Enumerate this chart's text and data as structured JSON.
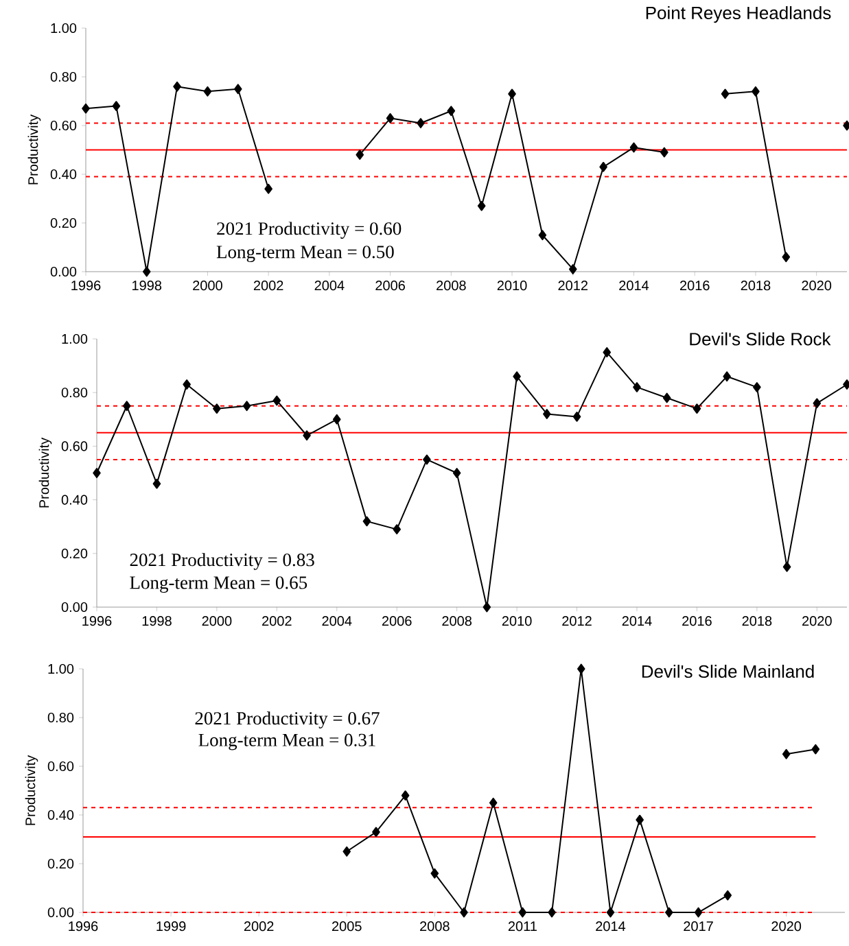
{
  "chart_data": [
    {
      "type": "line",
      "title": "Point Reyes Headlands",
      "ylabel": "Productivity",
      "color": "#000000",
      "marker": "diamond",
      "line_style": "solid",
      "x": [
        1996,
        1997,
        1998,
        1999,
        2000,
        2001,
        2002,
        2003,
        2004,
        2005,
        2006,
        2007,
        2008,
        2009,
        2010,
        2011,
        2012,
        2013,
        2014,
        2015,
        2016,
        2017,
        2018,
        2019,
        2020,
        2021
      ],
      "values": [
        0.67,
        0.68,
        0.0,
        0.76,
        0.74,
        0.75,
        0.34,
        null,
        null,
        0.48,
        0.63,
        0.61,
        0.66,
        0.27,
        0.73,
        0.15,
        0.01,
        0.43,
        0.51,
        0.49,
        null,
        0.73,
        0.74,
        0.06,
        null,
        0.6
      ],
      "xlim": [
        1996,
        2021
      ],
      "ylim": [
        0,
        1
      ],
      "xticks": [
        1996,
        1998,
        2000,
        2002,
        2004,
        2006,
        2008,
        2010,
        2012,
        2014,
        2016,
        2018,
        2020
      ],
      "yticks": [
        {
          "value": 0,
          "label": "0.00"
        },
        {
          "value": 0.2,
          "label": "0.20"
        },
        {
          "value": 0.4,
          "label": "0.40"
        },
        {
          "value": 0.6,
          "label": "0.60"
        },
        {
          "value": 0.8,
          "label": "0.80"
        },
        {
          "value": 1,
          "label": "1.00"
        }
      ],
      "ref_lines": [
        {
          "axis": "y",
          "value": 0.5,
          "color": "#ff0000",
          "line_style": "solid"
        },
        {
          "axis": "y",
          "value": 0.61,
          "color": "#ff0000",
          "line_style": "dashed"
        },
        {
          "axis": "y",
          "value": 0.39,
          "color": "#ff0000",
          "line_style": "dashed"
        }
      ],
      "annotations": [
        "2021 Productivity = 0.60",
        "Long-term Mean = 0.50"
      ]
    },
    {
      "type": "line",
      "title": "Devil's Slide Rock",
      "ylabel": "Productivity",
      "color": "#000000",
      "marker": "diamond",
      "line_style": "solid",
      "x": [
        1996,
        1997,
        1998,
        1999,
        2000,
        2001,
        2002,
        2003,
        2004,
        2005,
        2006,
        2007,
        2008,
        2009,
        2010,
        2011,
        2012,
        2013,
        2014,
        2015,
        2016,
        2017,
        2018,
        2019,
        2020,
        2021
      ],
      "values": [
        0.5,
        0.75,
        0.46,
        0.83,
        0.74,
        0.75,
        0.77,
        0.64,
        0.7,
        0.32,
        0.29,
        0.55,
        0.5,
        0.0,
        0.86,
        0.72,
        0.71,
        0.95,
        0.82,
        0.78,
        0.74,
        0.86,
        0.82,
        0.15,
        0.76,
        0.83
      ],
      "xlim": [
        1996,
        2021
      ],
      "ylim": [
        0,
        1
      ],
      "xticks": [
        1996,
        1998,
        2000,
        2002,
        2004,
        2006,
        2008,
        2010,
        2012,
        2014,
        2016,
        2018,
        2020
      ],
      "yticks": [
        {
          "value": 0,
          "label": "0.00"
        },
        {
          "value": 0.2,
          "label": "0.20"
        },
        {
          "value": 0.4,
          "label": "0.40"
        },
        {
          "value": 0.6,
          "label": "0.60"
        },
        {
          "value": 0.8,
          "label": "0.80"
        },
        {
          "value": 1,
          "label": "1.00"
        }
      ],
      "ref_lines": [
        {
          "axis": "y",
          "value": 0.65,
          "color": "#ff0000",
          "line_style": "solid"
        },
        {
          "axis": "y",
          "value": 0.75,
          "color": "#ff0000",
          "line_style": "dashed"
        },
        {
          "axis": "y",
          "value": 0.55,
          "color": "#ff0000",
          "line_style": "dashed"
        }
      ],
      "annotations": [
        "2021 Productivity = 0.83",
        "Long-term Mean = 0.65"
      ]
    },
    {
      "type": "line",
      "title": "Devil's Slide Mainland",
      "ylabel": "Productivity",
      "color": "#000000",
      "marker": "diamond",
      "line_style": "solid",
      "x": [
        2005,
        2006,
        2007,
        2008,
        2009,
        2010,
        2011,
        2012,
        2013,
        2014,
        2015,
        2016,
        2017,
        2018,
        2019,
        2020,
        2021
      ],
      "values": [
        0.25,
        0.33,
        0.48,
        0.16,
        0.0,
        0.45,
        0.0,
        0.0,
        1.0,
        0.0,
        0.38,
        0.0,
        0.0,
        0.07,
        null,
        0.65,
        0.67
      ],
      "xlim": [
        1996,
        2022
      ],
      "ylim": [
        0,
        1
      ],
      "xticks": [
        1996,
        1999,
        2002,
        2005,
        2008,
        2011,
        2014,
        2017,
        2020
      ],
      "yticks": [
        {
          "value": 0,
          "label": "0.00"
        },
        {
          "value": 0.2,
          "label": "0.20"
        },
        {
          "value": 0.4,
          "label": "0.40"
        },
        {
          "value": 0.6,
          "label": "0.60"
        },
        {
          "value": 0.8,
          "label": "0.80"
        },
        {
          "value": 1,
          "label": "1.00"
        }
      ],
      "ref_lines": [
        {
          "axis": "y",
          "value": 0.31,
          "color": "#ff0000",
          "line_style": "solid"
        },
        {
          "axis": "y",
          "value": 0.43,
          "color": "#ff0000",
          "line_style": "dashed"
        },
        {
          "axis": "y",
          "value": 0.0,
          "color": "#ff0000",
          "line_style": "dashed"
        }
      ],
      "annotations": [
        "2021 Productivity = 0.67",
        "Long-term Mean = 0.31"
      ]
    }
  ]
}
